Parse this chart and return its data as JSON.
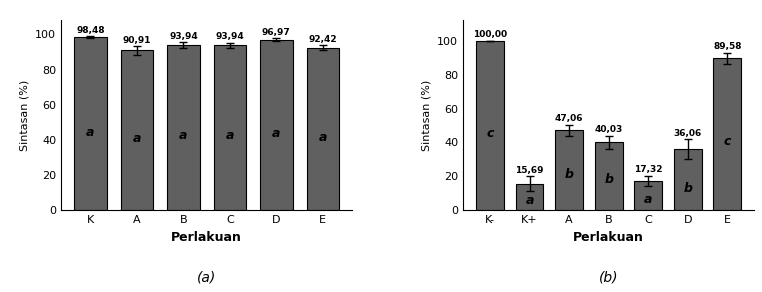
{
  "chart_a": {
    "categories": [
      "K",
      "A",
      "B",
      "C",
      "D",
      "E"
    ],
    "values": [
      98.48,
      90.91,
      93.94,
      93.94,
      96.97,
      92.42
    ],
    "errors": [
      0.5,
      2.5,
      1.8,
      1.5,
      0.8,
      1.5
    ],
    "labels": [
      "a",
      "a",
      "a",
      "a",
      "a",
      "a"
    ],
    "bar_color": "#606060",
    "ylabel": "Sintasan (%)",
    "xlabel": "Perlakuan",
    "ylim": [
      0,
      108
    ],
    "yticks": [
      0,
      20,
      40,
      60,
      80,
      100
    ],
    "caption": "(a)"
  },
  "chart_b": {
    "categories": [
      "K-",
      "K+",
      "A",
      "B",
      "C",
      "D",
      "E"
    ],
    "values": [
      100.0,
      15.69,
      47.06,
      40.03,
      17.32,
      36.06,
      89.58
    ],
    "errors": [
      0.0,
      4.5,
      3.5,
      4.0,
      3.0,
      6.0,
      3.5
    ],
    "labels": [
      "c",
      "a",
      "b",
      "b",
      "a",
      "b",
      "c"
    ],
    "bar_color": "#606060",
    "ylabel": "Sintasan (%)",
    "xlabel": "Perlakuan",
    "ylim": [
      0,
      112
    ],
    "yticks": [
      0,
      20,
      40,
      60,
      80,
      100
    ],
    "caption": "(b)"
  }
}
